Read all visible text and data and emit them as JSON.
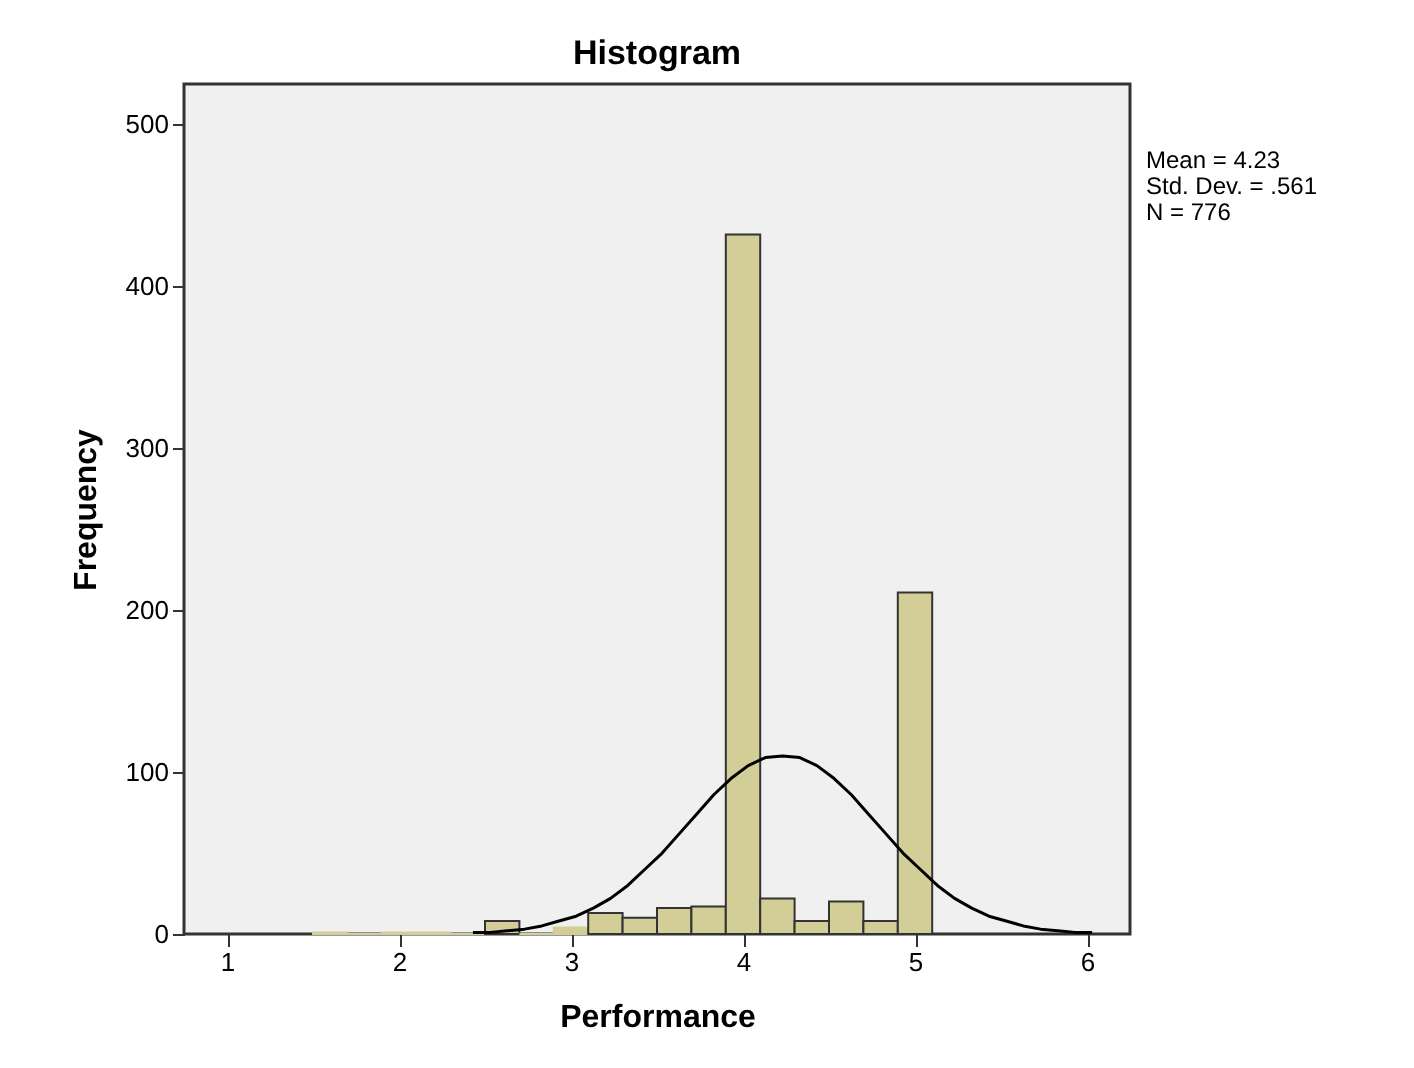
{
  "chart_data": {
    "type": "histogram",
    "title": "Histogram",
    "xlabel": "Performance",
    "ylabel": "Frequency",
    "bins": [
      1.5,
      1.7,
      1.9,
      2.1,
      2.3,
      2.5,
      2.7,
      2.9,
      3.1,
      3.3,
      3.5,
      3.7,
      3.9,
      4.1,
      4.3,
      4.5,
      4.7,
      4.9,
      5.1
    ],
    "values": [
      1,
      0,
      1,
      1,
      0,
      8,
      0,
      4,
      13,
      10,
      16,
      17,
      432,
      22,
      8,
      20,
      8,
      211
    ],
    "color": "#d3ce97",
    "series": [
      {
        "type": "line",
        "color": "#000000",
        "x": [
          2.43,
          2.53,
          2.63,
          2.73,
          2.83,
          2.93,
          3.03,
          3.13,
          3.23,
          3.33,
          3.43,
          3.53,
          3.63,
          3.73,
          3.83,
          3.93,
          4.03,
          4.13,
          4.23,
          4.33,
          4.43,
          4.53,
          4.63,
          4.73,
          4.83,
          4.93,
          5.03,
          5.13,
          5.23,
          5.33,
          5.43,
          5.53,
          5.63,
          5.73,
          5.83,
          5.93,
          6.03
        ],
        "values": [
          1,
          1,
          2,
          3,
          5,
          8,
          11,
          16,
          22,
          30,
          40,
          50,
          62,
          74,
          86,
          96,
          104,
          109,
          110,
          109,
          104,
          96,
          86,
          74,
          62,
          50,
          40,
          30,
          22,
          16,
          11,
          8,
          5,
          3,
          2,
          1,
          1
        ]
      }
    ],
    "xlim": [
      0.75,
      6.25
    ],
    "xticks": [
      1,
      2,
      3,
      4,
      5,
      6
    ],
    "ylim": [
      0,
      525
    ],
    "yticks": [
      0,
      100,
      200,
      300,
      400,
      500
    ],
    "annotations": [
      "Mean = 4.23",
      "Std. Dev. = .561",
      "N = 776"
    ]
  }
}
